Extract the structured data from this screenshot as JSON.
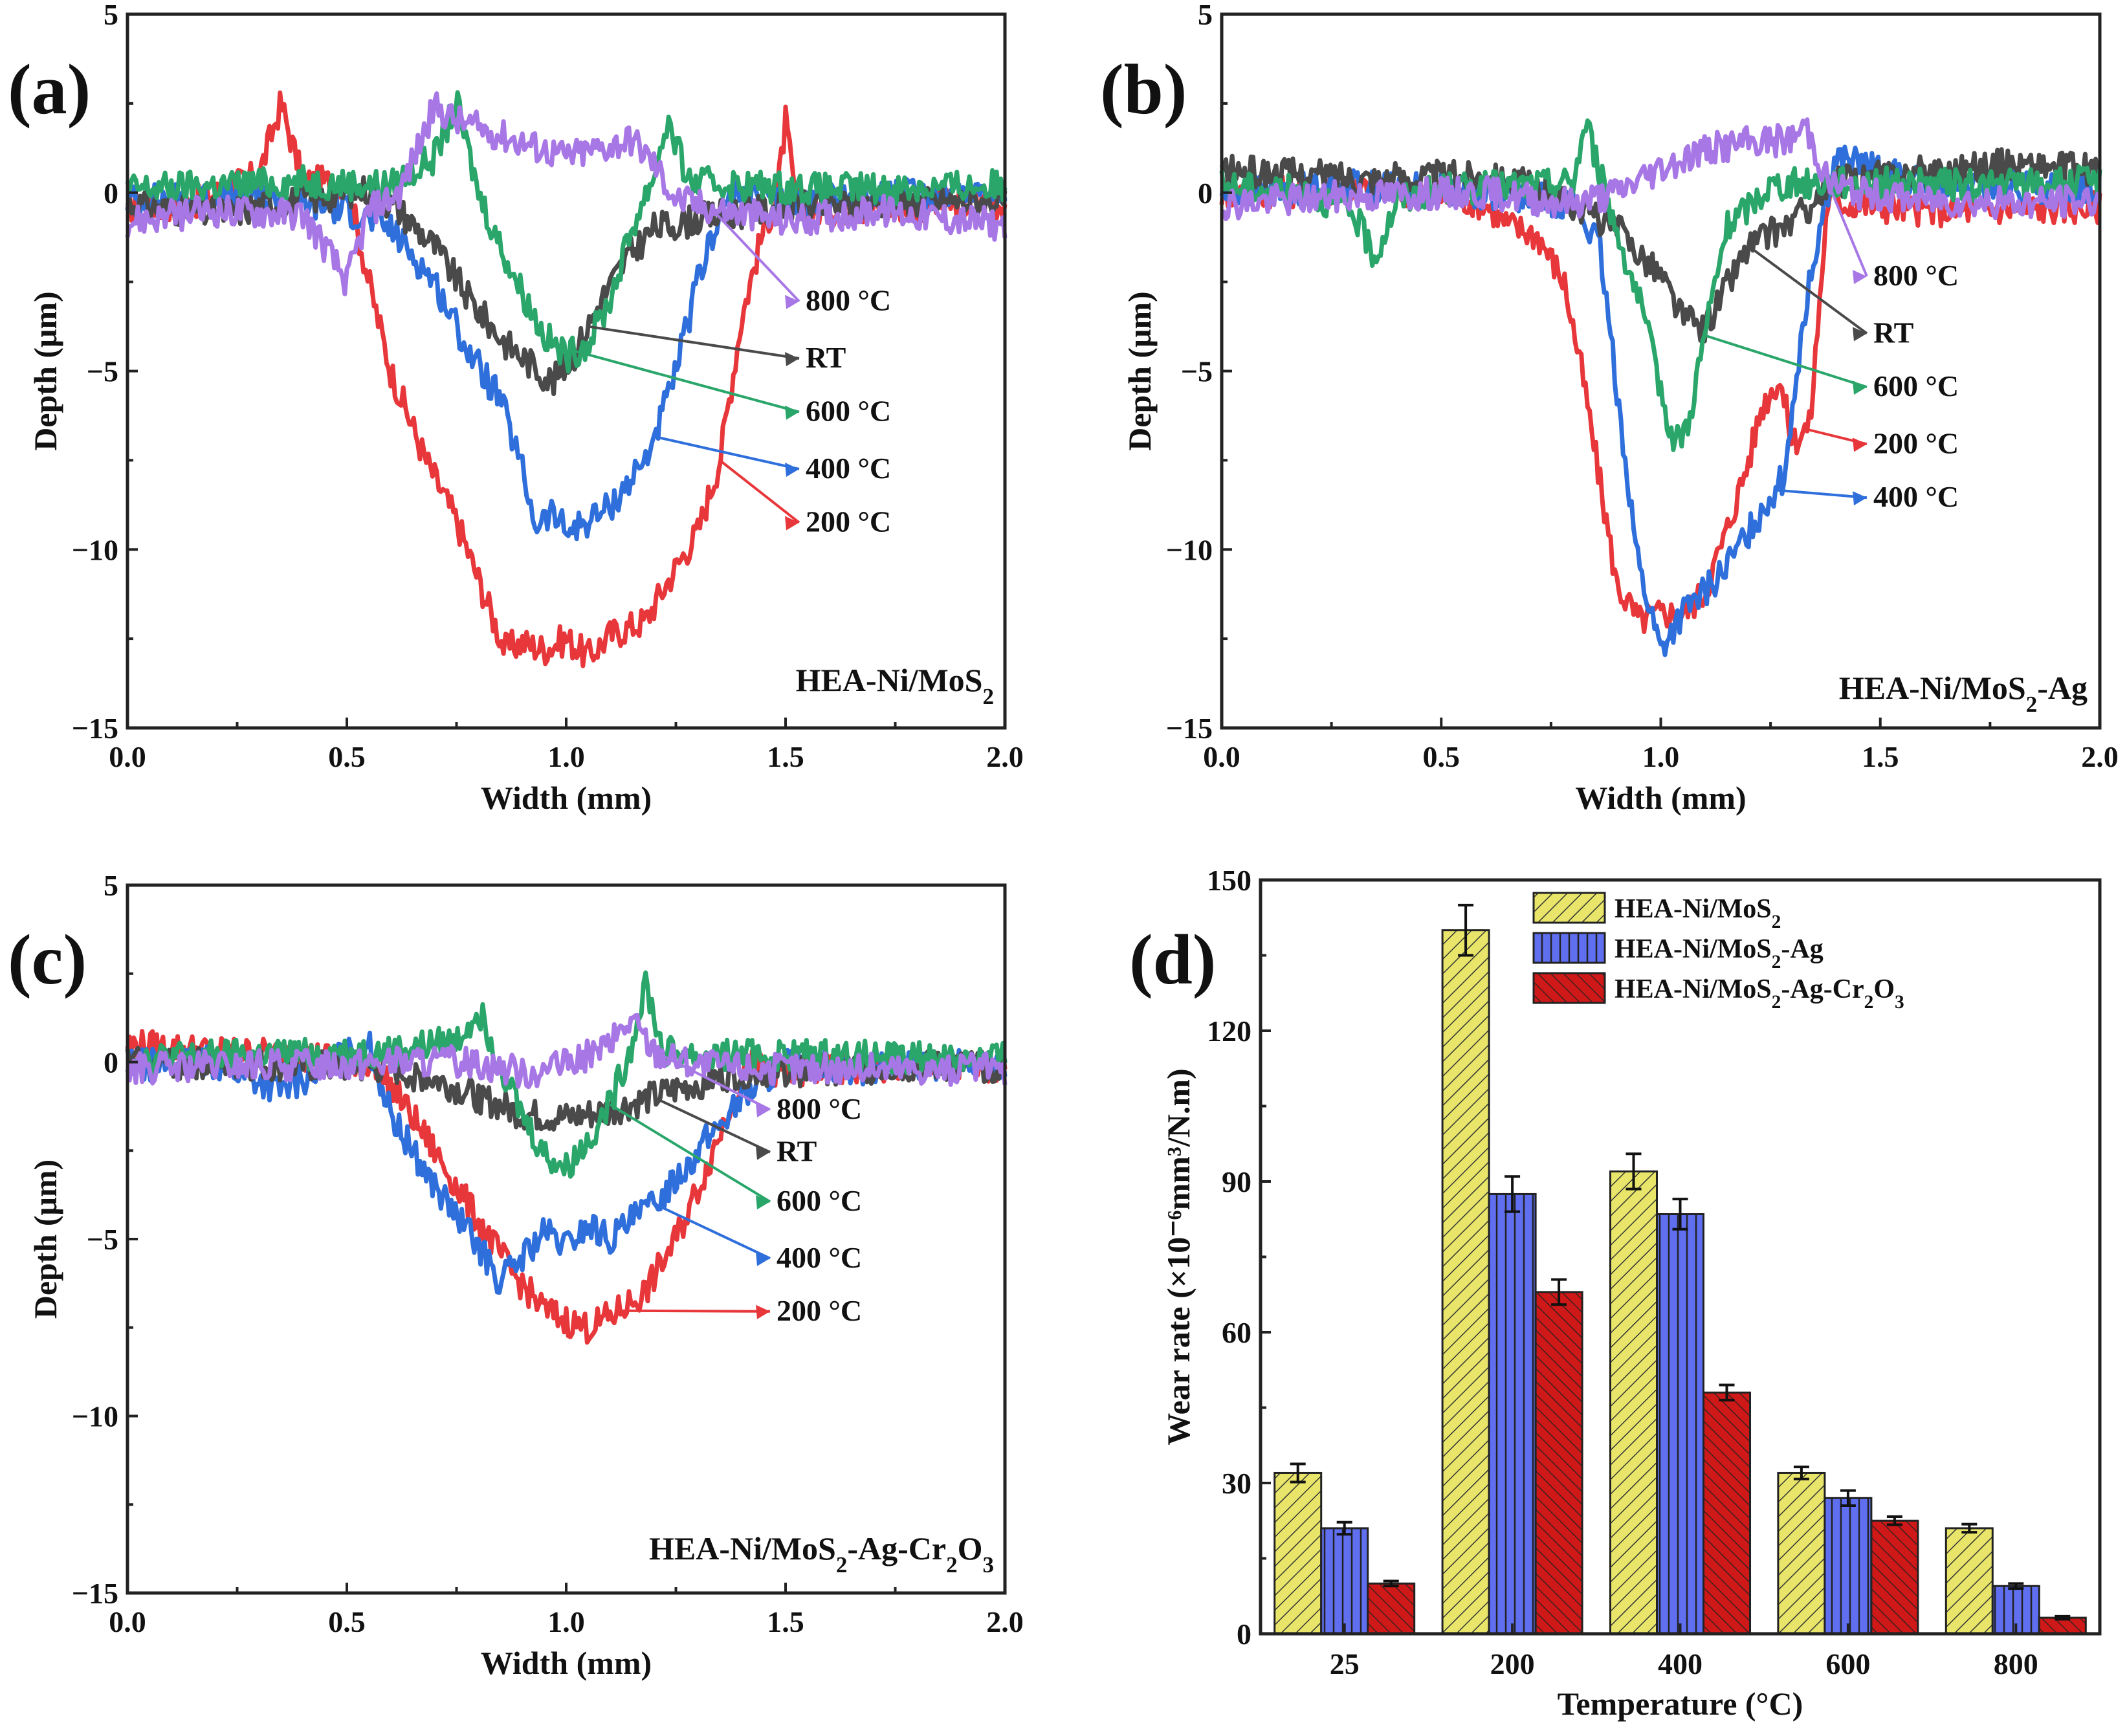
{
  "colors": {
    "RT": "#4a4a4a",
    "200 °C": "#e8373a",
    "400 °C": "#2f6fdc",
    "600 °C": "#2aa66a",
    "800 °C": "#a877e6",
    "bar1": "#e8e56a",
    "bar2": "#5f6ff0",
    "bar3": "#cf1818"
  },
  "chart_data": [
    {
      "type": "line",
      "panel": "(a)",
      "sample": "HEA-Ni/MoS",
      "sample_sub": "2",
      "sample_tail": "",
      "xlabel": "Width (mm)",
      "ylabel": "Depth (μm)",
      "xlim": [
        0.0,
        2.0
      ],
      "ylim": [
        -15,
        5
      ],
      "xticks": [
        "0.0",
        "0.5",
        "1.0",
        "1.5",
        "2.0"
      ],
      "yticks": [
        "5",
        "0",
        "−5",
        "−10",
        "−15"
      ],
      "labels_order": [
        "800 °C",
        "RT",
        "600 °C",
        "400 °C",
        "200 °C"
      ],
      "series": [
        {
          "name": "RT",
          "x": [
            0.0,
            0.2,
            0.4,
            0.55,
            0.62,
            0.7,
            0.78,
            0.86,
            0.92,
            0.97,
            1.02,
            1.08,
            1.14,
            1.2,
            1.28,
            1.36,
            1.5,
            1.7,
            2.0
          ],
          "y": [
            -0.3,
            -0.6,
            -0.2,
            0.1,
            -0.5,
            -1.5,
            -3.0,
            -4.2,
            -4.8,
            -5.3,
            -4.5,
            -3.0,
            -1.8,
            -1.0,
            -0.8,
            -0.6,
            -0.4,
            -0.3,
            -0.2
          ]
        },
        {
          "name": "200 °C",
          "x": [
            0.0,
            0.15,
            0.3,
            0.35,
            0.4,
            0.5,
            0.55,
            0.6,
            0.68,
            0.75,
            0.82,
            0.86,
            0.9,
            0.95,
            1.0,
            1.05,
            1.1,
            1.18,
            1.25,
            1.3,
            1.35,
            1.4,
            1.45,
            1.48,
            1.5,
            1.52,
            1.56,
            1.7,
            2.0
          ],
          "y": [
            -0.4,
            -0.3,
            0.5,
            2.5,
            0.3,
            0.3,
            -2.5,
            -5.0,
            -7.5,
            -9.2,
            -11.5,
            -12.8,
            -12.6,
            -12.8,
            -12.5,
            -13.0,
            -12.4,
            -12.0,
            -10.5,
            -9.5,
            -7.5,
            -3.5,
            -1.0,
            -0.2,
            2.0,
            0.0,
            -0.5,
            -0.4,
            -0.3
          ]
        },
        {
          "name": "400 °C",
          "x": [
            0.0,
            0.3,
            0.5,
            0.6,
            0.7,
            0.78,
            0.85,
            0.9,
            0.93,
            0.97,
            1.0,
            1.05,
            1.1,
            1.18,
            1.24,
            1.3,
            1.35,
            1.4,
            1.5,
            1.7,
            2.0
          ],
          "y": [
            -0.2,
            -0.1,
            -0.5,
            -1.0,
            -2.5,
            -4.5,
            -5.8,
            -7.8,
            -9.3,
            -9.0,
            -9.5,
            -9.2,
            -8.8,
            -7.5,
            -5.5,
            -2.5,
            -0.5,
            0.0,
            -0.3,
            -0.1,
            0.1
          ]
        },
        {
          "name": "600 °C",
          "x": [
            0.0,
            0.2,
            0.4,
            0.6,
            0.7,
            0.75,
            0.8,
            0.85,
            0.9,
            0.95,
            1.0,
            1.05,
            1.1,
            1.15,
            1.2,
            1.23,
            1.28,
            1.4,
            1.6,
            2.0
          ],
          "y": [
            0.1,
            0.2,
            0.3,
            0.2,
            1.0,
            2.5,
            0.0,
            -1.5,
            -2.8,
            -4.0,
            -4.6,
            -4.2,
            -3.0,
            -1.0,
            0.5,
            2.0,
            0.3,
            0.2,
            0.1,
            0.2
          ]
        },
        {
          "name": "800 °C",
          "x": [
            0.0,
            0.2,
            0.4,
            0.45,
            0.5,
            0.55,
            0.62,
            0.7,
            0.75,
            0.8,
            0.9,
            1.0,
            1.1,
            1.15,
            1.2,
            1.25,
            1.35,
            1.5,
            1.7,
            2.0
          ],
          "y": [
            -0.8,
            -0.5,
            -0.6,
            -1.5,
            -2.5,
            -0.5,
            0.0,
            2.4,
            2.0,
            1.8,
            1.4,
            1.0,
            1.3,
            1.5,
            0.8,
            -0.2,
            -0.5,
            -0.8,
            -0.5,
            -0.9
          ]
        }
      ]
    },
    {
      "type": "line",
      "panel": "(b)",
      "sample": "HEA-Ni/MoS",
      "sample_sub": "2",
      "sample_tail": "-Ag",
      "xlabel": "Width (mm)",
      "ylabel": "Depth (μm)",
      "xlim": [
        0.0,
        2.0
      ],
      "ylim": [
        -15,
        5
      ],
      "xticks": [
        "0.0",
        "0.5",
        "1.0",
        "1.5",
        "2.0"
      ],
      "yticks": [
        "5",
        "0",
        "−5",
        "−10",
        "−15"
      ],
      "labels_order": [
        "800 °C",
        "RT",
        "600 °C",
        "200 °C",
        "400 °C"
      ],
      "series": [
        {
          "name": "RT",
          "x": [
            0.0,
            0.2,
            0.4,
            0.6,
            0.7,
            0.8,
            0.9,
            1.0,
            1.05,
            1.1,
            1.15,
            1.2,
            1.3,
            1.4,
            1.6,
            1.8,
            2.0
          ],
          "y": [
            0.6,
            0.5,
            0.4,
            0.5,
            0.2,
            -0.3,
            -1.0,
            -2.3,
            -3.5,
            -3.8,
            -2.6,
            -1.5,
            -0.8,
            0.3,
            0.6,
            0.8,
            0.6
          ]
        },
        {
          "name": "200 °C",
          "x": [
            0.0,
            0.4,
            0.6,
            0.65,
            0.72,
            0.78,
            0.82,
            0.86,
            0.9,
            0.95,
            1.0,
            1.05,
            1.1,
            1.15,
            1.2,
            1.23,
            1.27,
            1.3,
            1.34,
            1.38,
            1.42,
            1.6,
            2.0
          ],
          "y": [
            0.0,
            0.1,
            -0.3,
            -0.9,
            -1.2,
            -2.5,
            -5.0,
            -8.0,
            -11.0,
            -12.0,
            -11.8,
            -11.8,
            -11.2,
            -9.5,
            -7.5,
            -6.0,
            -5.2,
            -7.0,
            -6.5,
            -0.2,
            -0.3,
            -0.5,
            -0.4
          ]
        },
        {
          "name": "400 °C",
          "x": [
            0.0,
            0.3,
            0.6,
            0.8,
            0.86,
            0.9,
            0.95,
            1.0,
            1.05,
            1.1,
            1.15,
            1.2,
            1.25,
            1.28,
            1.32,
            1.36,
            1.4,
            1.6,
            2.0
          ],
          "y": [
            0.0,
            0.2,
            0.0,
            -0.3,
            -1.5,
            -5.5,
            -10.5,
            -12.8,
            -11.8,
            -11.2,
            -10.5,
            -9.5,
            -8.5,
            -8.0,
            -4.0,
            -1.0,
            1.0,
            0.2,
            0.1
          ]
        },
        {
          "name": "600 °C",
          "x": [
            0.0,
            0.2,
            0.3,
            0.35,
            0.4,
            0.5,
            0.7,
            0.8,
            0.83,
            0.88,
            0.95,
            1.0,
            1.03,
            1.06,
            1.1,
            1.15,
            1.25,
            1.4,
            1.7,
            2.0
          ],
          "y": [
            0.2,
            0.0,
            -0.6,
            -1.8,
            -0.2,
            0.1,
            0.2,
            0.3,
            2.0,
            -0.3,
            -3.0,
            -5.5,
            -7.0,
            -6.6,
            -4.0,
            -1.0,
            0.2,
            0.3,
            0.2,
            0.3
          ]
        },
        {
          "name": "800 °C",
          "x": [
            0.0,
            0.3,
            0.6,
            0.8,
            0.9,
            1.0,
            1.1,
            1.2,
            1.3,
            1.33,
            1.38,
            1.45,
            1.6,
            1.8,
            2.0
          ],
          "y": [
            -0.3,
            -0.1,
            0.0,
            -0.3,
            0.0,
            0.7,
            1.2,
            1.4,
            1.5,
            1.9,
            0.3,
            0.0,
            -0.2,
            -0.3,
            -0.2
          ]
        }
      ]
    },
    {
      "type": "line",
      "panel": "(c)",
      "sample": "HEA-Ni/MoS",
      "sample_sub": "2",
      "sample_tail": "-Ag-Cr2O3",
      "xlabel": "Width (mm)",
      "ylabel": "Depth (μm)",
      "xlim": [
        0.0,
        2.0
      ],
      "ylim": [
        -15,
        5
      ],
      "xticks": [
        "0.0",
        "0.5",
        "1.0",
        "1.5",
        "2.0"
      ],
      "yticks": [
        "5",
        "0",
        "−5",
        "−10",
        "−15"
      ],
      "labels_order": [
        "800 °C",
        "RT",
        "600 °C",
        "400 °C",
        "200 °C"
      ],
      "series": [
        {
          "name": "RT",
          "x": [
            0.0,
            0.3,
            0.6,
            0.7,
            0.8,
            0.9,
            1.0,
            1.1,
            1.2,
            1.3,
            1.4,
            1.6,
            2.0
          ],
          "y": [
            0.0,
            -0.1,
            -0.2,
            -0.5,
            -1.0,
            -1.5,
            -1.6,
            -1.4,
            -1.0,
            -0.6,
            -0.3,
            -0.2,
            -0.1
          ]
        },
        {
          "name": "200 °C",
          "x": [
            0.0,
            0.2,
            0.4,
            0.55,
            0.62,
            0.7,
            0.8,
            0.88,
            0.95,
            1.0,
            1.05,
            1.1,
            1.18,
            1.25,
            1.32,
            1.38,
            1.42,
            1.5,
            1.7,
            2.0
          ],
          "y": [
            0.5,
            0.3,
            0.2,
            0.0,
            -1.0,
            -2.5,
            -4.5,
            -6.0,
            -7.0,
            -7.3,
            -7.5,
            -7.2,
            -6.5,
            -5.0,
            -3.0,
            -1.0,
            0.0,
            -0.3,
            -0.2,
            -0.1
          ]
        },
        {
          "name": "400 °C",
          "x": [
            0.0,
            0.2,
            0.35,
            0.5,
            0.55,
            0.6,
            0.7,
            0.8,
            0.85,
            0.9,
            0.95,
            1.0,
            1.05,
            1.1,
            1.2,
            1.3,
            1.4,
            1.5,
            1.7,
            2.0
          ],
          "y": [
            -0.1,
            0.0,
            -0.8,
            0.2,
            0.5,
            -1.5,
            -3.5,
            -5.2,
            -6.2,
            -5.5,
            -4.8,
            -5.2,
            -4.6,
            -5.0,
            -4.0,
            -2.5,
            -1.0,
            0.0,
            -0.2,
            0.0
          ]
        },
        {
          "name": "600 °C",
          "x": [
            0.0,
            0.3,
            0.6,
            0.75,
            0.8,
            0.85,
            0.9,
            0.95,
            1.0,
            1.05,
            1.1,
            1.15,
            1.18,
            1.22,
            1.3,
            1.5,
            2.0
          ],
          "y": [
            0.1,
            0.2,
            0.3,
            0.6,
            1.5,
            0.0,
            -1.5,
            -2.6,
            -3.0,
            -2.2,
            -1.2,
            0.5,
            2.3,
            0.3,
            0.2,
            0.2,
            0.1
          ]
        },
        {
          "name": "800 °C",
          "x": [
            0.0,
            0.3,
            0.6,
            0.8,
            0.9,
            1.0,
            1.1,
            1.15,
            1.2,
            1.3,
            1.5,
            2.0
          ],
          "y": [
            -0.2,
            -0.1,
            0.0,
            0.0,
            -0.3,
            -0.1,
            0.5,
            1.2,
            0.3,
            -0.1,
            -0.2,
            -0.2
          ]
        }
      ]
    },
    {
      "type": "bar",
      "panel": "(d)",
      "xlabel": "Temperature (°C)",
      "ylabel": "Wear rate (×10⁻⁶mm³/N.m)",
      "ylim": [
        0,
        150
      ],
      "yticks": [
        "0",
        "30",
        "60",
        "90",
        "120",
        "150"
      ],
      "categories": [
        "25",
        "200",
        "400",
        "600",
        "800"
      ],
      "series": [
        {
          "name": "HEA-Ni/MoS2",
          "legend_main": "HEA-Ni/MoS",
          "legend_sub": "2",
          "legend_tail": "",
          "values": [
            32,
            140,
            92,
            32,
            21
          ],
          "errors": [
            1.8,
            5.0,
            3.5,
            1.2,
            0.8
          ]
        },
        {
          "name": "HEA-Ni/MoS2-Ag",
          "legend_main": "HEA-Ni/MoS",
          "legend_sub": "2",
          "legend_tail": "-Ag",
          "values": [
            21,
            87.5,
            83.5,
            27,
            9.5
          ],
          "errors": [
            1.2,
            3.5,
            3.0,
            1.5,
            0.5
          ]
        },
        {
          "name": "HEA-Ni/MoS2-Ag-Cr2O3",
          "legend_main": "HEA-Ni/MoS",
          "legend_sub": "2",
          "legend_tail": "-Ag-Cr2O3",
          "values": [
            10,
            68,
            48,
            22.5,
            3.2
          ],
          "errors": [
            0.5,
            2.5,
            1.5,
            0.8,
            0.3
          ]
        }
      ]
    }
  ]
}
